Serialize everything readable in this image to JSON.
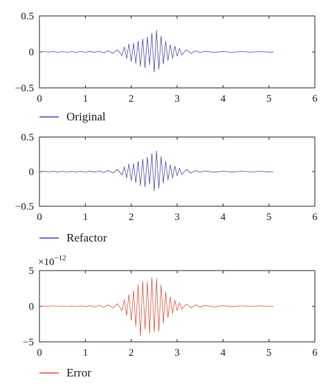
{
  "chart_data": [
    {
      "type": "line",
      "xlim": [
        0,
        6
      ],
      "ylim": [
        -0.5,
        0.5
      ],
      "x_ticks": [
        "0",
        "1",
        "2",
        "3",
        "4",
        "5",
        "6"
      ],
      "y_ticks": [
        "0.5",
        "0",
        "−0.5"
      ],
      "grid": false,
      "legend_position": "bottom-left",
      "series": [
        {
          "name": "Original",
          "color": "#4a4aa8",
          "x": [
            0,
            0.1,
            0.2,
            0.3,
            0.4,
            0.5,
            0.6,
            0.7,
            0.8,
            0.9,
            1.0,
            1.1,
            1.2,
            1.3,
            1.4,
            1.5,
            1.6,
            1.7,
            1.8,
            1.85,
            1.9,
            1.95,
            2.0,
            2.05,
            2.1,
            2.15,
            2.2,
            2.25,
            2.3,
            2.35,
            2.4,
            2.45,
            2.5,
            2.55,
            2.6,
            2.65,
            2.7,
            2.75,
            2.8,
            2.85,
            2.9,
            2.95,
            3.0,
            3.05,
            3.1,
            3.2,
            3.3,
            3.4,
            3.5,
            3.6,
            3.8,
            4.0,
            4.2,
            4.4,
            4.6,
            4.8,
            5.0,
            5.1
          ],
          "y": [
            0,
            0.005,
            -0.004,
            0.006,
            -0.005,
            0.004,
            -0.006,
            0.005,
            -0.005,
            0.006,
            -0.006,
            0.008,
            -0.007,
            0.01,
            -0.012,
            0.015,
            -0.02,
            0.03,
            -0.05,
            0.07,
            -0.09,
            0.11,
            -0.13,
            0.12,
            -0.16,
            0.15,
            -0.2,
            0.18,
            -0.22,
            0.21,
            -0.18,
            0.26,
            -0.28,
            0.3,
            -0.24,
            0.22,
            -0.17,
            0.15,
            -0.12,
            0.1,
            -0.09,
            0.08,
            -0.06,
            0.05,
            -0.04,
            0.03,
            -0.02,
            0.015,
            -0.01,
            0.01,
            -0.008,
            0.006,
            -0.006,
            0.005,
            -0.004,
            0.004,
            -0.003,
            0
          ]
        }
      ]
    },
    {
      "type": "line",
      "xlim": [
        0,
        6
      ],
      "ylim": [
        -0.5,
        0.5
      ],
      "x_ticks": [
        "0",
        "1",
        "2",
        "3",
        "4",
        "5",
        "6"
      ],
      "y_ticks": [
        "0.5",
        "0",
        "−0.5"
      ],
      "grid": false,
      "legend_position": "bottom-left",
      "series": [
        {
          "name": "Refactor",
          "color": "#4a4aa8",
          "x": [
            0,
            0.1,
            0.2,
            0.3,
            0.4,
            0.5,
            0.6,
            0.7,
            0.8,
            0.9,
            1.0,
            1.1,
            1.2,
            1.3,
            1.4,
            1.5,
            1.6,
            1.7,
            1.8,
            1.85,
            1.9,
            1.95,
            2.0,
            2.05,
            2.1,
            2.15,
            2.2,
            2.25,
            2.3,
            2.35,
            2.4,
            2.45,
            2.5,
            2.55,
            2.6,
            2.65,
            2.7,
            2.75,
            2.8,
            2.85,
            2.9,
            2.95,
            3.0,
            3.05,
            3.1,
            3.2,
            3.3,
            3.4,
            3.5,
            3.6,
            3.8,
            4.0,
            4.2,
            4.4,
            4.6,
            4.8,
            5.0,
            5.1
          ],
          "y": [
            0,
            0.005,
            -0.004,
            0.006,
            -0.005,
            0.004,
            -0.006,
            0.005,
            -0.005,
            0.006,
            -0.006,
            0.008,
            -0.007,
            0.01,
            -0.012,
            0.015,
            -0.02,
            0.03,
            -0.05,
            0.07,
            -0.09,
            0.11,
            -0.13,
            0.12,
            -0.16,
            0.15,
            -0.2,
            0.18,
            -0.22,
            0.21,
            -0.18,
            0.26,
            -0.28,
            0.3,
            -0.24,
            0.22,
            -0.17,
            0.15,
            -0.12,
            0.1,
            -0.09,
            0.08,
            -0.06,
            0.05,
            -0.04,
            0.03,
            -0.02,
            0.015,
            -0.01,
            0.01,
            -0.008,
            0.006,
            -0.006,
            0.005,
            -0.004,
            0.004,
            -0.003,
            0
          ]
        }
      ]
    },
    {
      "type": "line",
      "xlim": [
        0,
        6
      ],
      "ylim": [
        -5,
        5
      ],
      "y_scale_label": "×10",
      "y_scale_exponent": "−12",
      "x_ticks": [
        "0",
        "1",
        "2",
        "3",
        "4",
        "5",
        "6"
      ],
      "y_ticks": [
        "5",
        "0",
        "−5"
      ],
      "grid": false,
      "legend_position": "bottom-left",
      "series": [
        {
          "name": "Error",
          "color": "#d9553b",
          "x": [
            0,
            0.1,
            0.2,
            0.3,
            0.4,
            0.5,
            0.6,
            0.7,
            0.8,
            0.9,
            1.0,
            1.1,
            1.2,
            1.3,
            1.4,
            1.5,
            1.6,
            1.7,
            1.8,
            1.85,
            1.9,
            1.95,
            2.0,
            2.05,
            2.1,
            2.15,
            2.2,
            2.25,
            2.3,
            2.35,
            2.4,
            2.45,
            2.5,
            2.55,
            2.6,
            2.65,
            2.7,
            2.75,
            2.8,
            2.85,
            2.9,
            2.95,
            3.0,
            3.05,
            3.1,
            3.2,
            3.3,
            3.4,
            3.5,
            3.6,
            3.8,
            4.0,
            4.2,
            4.4,
            4.6,
            4.8,
            5.0,
            5.1
          ],
          "y": [
            0,
            0.05,
            -0.05,
            0.06,
            -0.05,
            0.05,
            -0.06,
            0.05,
            -0.05,
            0.06,
            -0.07,
            0.08,
            -0.09,
            0.12,
            -0.15,
            0.2,
            -0.25,
            0.35,
            -0.6,
            0.9,
            -1.3,
            1.6,
            -2.0,
            2.2,
            -2.8,
            3.0,
            -4.2,
            3.5,
            -3.2,
            3.4,
            -3.8,
            4.0,
            -3.6,
            3.9,
            -3.5,
            3.0,
            -2.4,
            2.0,
            -1.6,
            1.3,
            -1.0,
            0.8,
            -0.6,
            0.5,
            -0.4,
            0.3,
            -0.25,
            0.2,
            -0.15,
            0.12,
            -0.1,
            0.08,
            -0.07,
            0.06,
            -0.05,
            0.05,
            -0.04,
            0
          ]
        }
      ]
    }
  ]
}
